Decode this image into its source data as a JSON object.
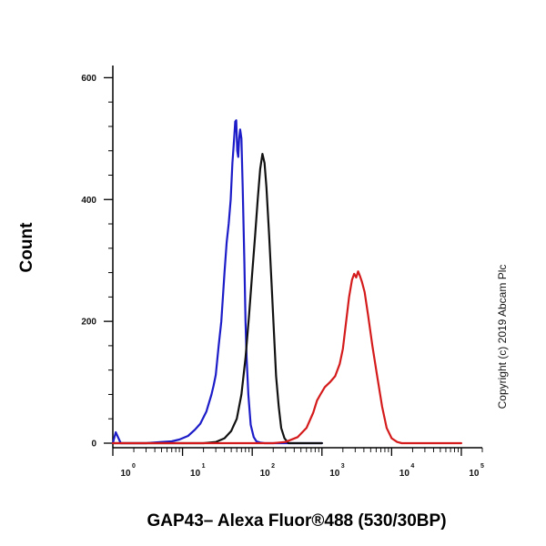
{
  "chart_data": {
    "type": "line",
    "title": "",
    "xlabel": "GAP43– Alexa Fluor®488 (530/30BP)",
    "ylabel": "Count",
    "x_scale": "log",
    "xlim": [
      1,
      200000
    ],
    "ylim": [
      0,
      620
    ],
    "yticks": [
      0,
      200,
      400,
      600
    ],
    "xticks": [
      {
        "base": "10",
        "exp": "0",
        "value": 1
      },
      {
        "base": "10",
        "exp": "1",
        "value": 10
      },
      {
        "base": "10",
        "exp": "2",
        "value": 100
      },
      {
        "base": "10",
        "exp": "3",
        "value": 1000
      },
      {
        "base": "10",
        "exp": "4",
        "value": 10000
      },
      {
        "base": "10",
        "exp": "5",
        "value": 100000
      }
    ],
    "grid": false,
    "series": [
      {
        "color": "#1c1cc8",
        "x": [
          1,
          1.1,
          1.3,
          2,
          3,
          5,
          7,
          9,
          12,
          15,
          18,
          22,
          26,
          28,
          30,
          33,
          36,
          40,
          43,
          46,
          49,
          52,
          55,
          57,
          59,
          61,
          63,
          65,
          67,
          70,
          73,
          77,
          80,
          83,
          88,
          95,
          105,
          115,
          130,
          150,
          1000
        ],
        "y": [
          0,
          18,
          0,
          0,
          0,
          2,
          3,
          6,
          12,
          22,
          32,
          52,
          80,
          95,
          112,
          160,
          200,
          280,
          330,
          360,
          400,
          460,
          500,
          528,
          530,
          480,
          470,
          500,
          515,
          500,
          420,
          300,
          200,
          140,
          80,
          30,
          10,
          3,
          1,
          0,
          0
        ]
      },
      {
        "color": "#111111",
        "x": [
          1,
          20,
          30,
          40,
          50,
          60,
          70,
          80,
          90,
          100,
          110,
          120,
          130,
          140,
          150,
          160,
          175,
          190,
          205,
          220,
          240,
          260,
          290,
          330,
          1000
        ],
        "y": [
          0,
          0,
          2,
          8,
          20,
          40,
          80,
          140,
          210,
          280,
          340,
          400,
          450,
          475,
          460,
          420,
          340,
          260,
          180,
          110,
          60,
          25,
          8,
          0,
          0
        ]
      },
      {
        "color": "#d41a1a",
        "x": [
          1,
          200,
          300,
          450,
          600,
          750,
          850,
          950,
          1100,
          1300,
          1550,
          1800,
          2000,
          2200,
          2450,
          2700,
          2900,
          3100,
          3300,
          3500,
          3750,
          4100,
          4600,
          5300,
          6200,
          7300,
          8500,
          10000,
          12000,
          14000,
          100000
        ],
        "y": [
          0,
          0,
          2,
          10,
          25,
          50,
          70,
          80,
          92,
          100,
          110,
          130,
          155,
          195,
          240,
          268,
          278,
          272,
          282,
          275,
          265,
          248,
          210,
          160,
          110,
          60,
          25,
          8,
          2,
          0,
          0
        ]
      }
    ]
  },
  "watermark": "Copyright (c) 2019 Abcam Plc"
}
